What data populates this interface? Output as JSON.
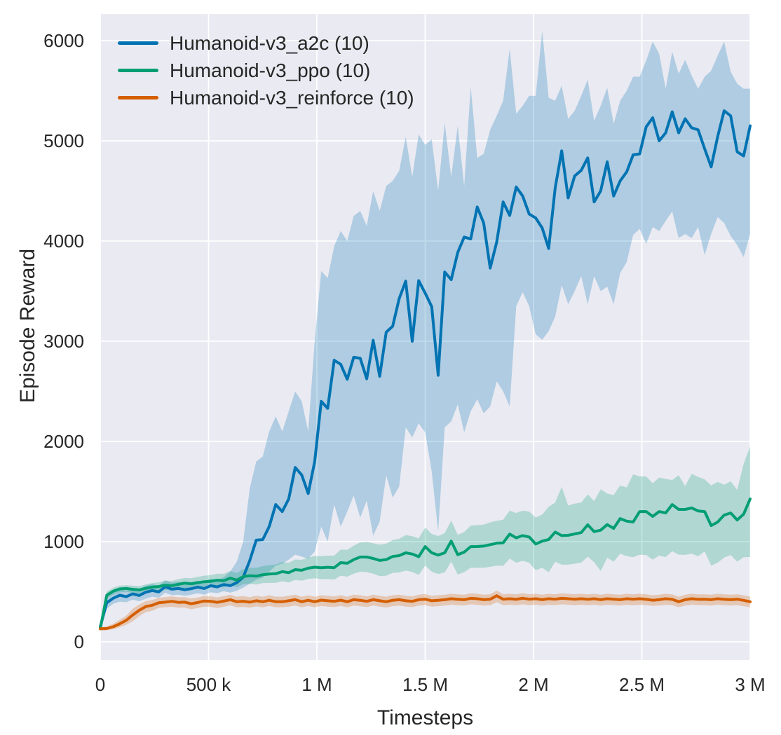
{
  "axes": {
    "xlabel": "Timesteps",
    "ylabel": "Episode Reward",
    "x_ticks": [
      {
        "label": "0",
        "value": 0
      },
      {
        "label": "500 k",
        "value": 500
      },
      {
        "label": "1 M",
        "value": 1000
      },
      {
        "label": "1.5 M",
        "value": 1500
      },
      {
        "label": "2 M",
        "value": 2000
      },
      {
        "label": "2.5 M",
        "value": 2500
      },
      {
        "label": "3 M",
        "value": 3000
      }
    ],
    "y_ticks": [
      {
        "label": "0",
        "value": 0
      },
      {
        "label": "1000",
        "value": 1000
      },
      {
        "label": "2000",
        "value": 2000
      },
      {
        "label": "3000",
        "value": 3000
      },
      {
        "label": "4000",
        "value": 4000
      },
      {
        "label": "5000",
        "value": 5000
      },
      {
        "label": "6000",
        "value": 6000
      }
    ]
  },
  "legend": {
    "entries": [
      {
        "label": "Humanoid-v3_a2c (10)",
        "color": "#0173b2"
      },
      {
        "label": "Humanoid-v3_ppo (10)",
        "color": "#029e73"
      },
      {
        "label": "Humanoid-v3_reinforce (10)",
        "color": "#d55e00"
      }
    ],
    "position": "upper left"
  },
  "colors": {
    "plot_bg": "#eaeaf2",
    "grid": "#ffffff",
    "text": "#262626",
    "blue": "#0173b2",
    "green": "#029e73",
    "orange": "#d55e00"
  },
  "chart_data": {
    "type": "line",
    "title": "",
    "xlabel": "Timesteps",
    "ylabel": "Episode Reward",
    "x_unit": "thousand timesteps",
    "xlim": [
      0,
      3000
    ],
    "ylim_shown_ticks": [
      0,
      6000
    ],
    "grid": true,
    "bands": "min-max shaded region per series, fill same color at 25% opacity",
    "x": [
      0,
      30,
      60,
      90,
      120,
      150,
      180,
      210,
      240,
      270,
      300,
      330,
      360,
      390,
      420,
      450,
      480,
      510,
      540,
      570,
      600,
      630,
      660,
      690,
      720,
      750,
      780,
      810,
      840,
      870,
      900,
      930,
      960,
      990,
      1020,
      1050,
      1080,
      1110,
      1140,
      1170,
      1200,
      1230,
      1260,
      1290,
      1320,
      1350,
      1380,
      1410,
      1440,
      1470,
      1500,
      1530,
      1560,
      1590,
      1620,
      1650,
      1680,
      1710,
      1740,
      1770,
      1800,
      1830,
      1860,
      1890,
      1920,
      1950,
      1980,
      2010,
      2040,
      2070,
      2100,
      2130,
      2160,
      2190,
      2220,
      2250,
      2280,
      2310,
      2340,
      2370,
      2400,
      2430,
      2460,
      2490,
      2520,
      2550,
      2580,
      2610,
      2640,
      2670,
      2700,
      2730,
      2760,
      2790,
      2820,
      2850,
      2880,
      2910,
      2940,
      2970,
      3000
    ],
    "series": [
      {
        "name": "Humanoid-v3_a2c (10)",
        "color": "#0173b2",
        "mean": [
          150,
          390,
          435,
          465,
          450,
          478,
          462,
          495,
          512,
          498,
          550,
          525,
          532,
          520,
          530,
          546,
          532,
          560,
          548,
          572,
          560,
          590,
          645,
          810,
          1015,
          1020,
          1150,
          1370,
          1300,
          1425,
          1740,
          1665,
          1480,
          1800,
          2400,
          2330,
          2810,
          2770,
          2620,
          2840,
          2830,
          2625,
          3010,
          2650,
          3090,
          3150,
          3425,
          3600,
          3000,
          3605,
          3480,
          3345,
          2660,
          3690,
          3615,
          3885,
          4040,
          4020,
          4340,
          4180,
          3730,
          3990,
          4390,
          4255,
          4540,
          4450,
          4270,
          4230,
          4130,
          3925,
          4530,
          4900,
          4430,
          4650,
          4705,
          4830,
          4390,
          4500,
          4790,
          4450,
          4600,
          4690,
          4860,
          4870,
          5140,
          5230,
          5000,
          5080,
          5290,
          5080,
          5220,
          5130,
          5110,
          4920,
          4740,
          5040,
          5300,
          5250,
          4890,
          4850,
          5150
        ],
        "lo": [
          120,
          330,
          380,
          400,
          395,
          420,
          405,
          430,
          450,
          440,
          490,
          465,
          470,
          460,
          470,
          485,
          470,
          495,
          485,
          505,
          490,
          510,
          540,
          580,
          620,
          640,
          700,
          760,
          780,
          820,
          870,
          850,
          830,
          900,
          1150,
          1000,
          1370,
          1150,
          1300,
          1460,
          1240,
          1410,
          1060,
          1200,
          1660,
          1440,
          1550,
          2140,
          2040,
          2180,
          2090,
          1700,
          1100,
          2140,
          2200,
          2370,
          2090,
          2300,
          2420,
          2280,
          2350,
          2600,
          2500,
          2350,
          3350,
          3490,
          3350,
          3070,
          3015,
          3100,
          3245,
          3560,
          3370,
          3500,
          3650,
          3370,
          3650,
          3500,
          3545,
          3370,
          3680,
          3790,
          4060,
          4120,
          3970,
          4140,
          4100,
          4200,
          4295,
          4030,
          4070,
          4030,
          4140,
          3860,
          4070,
          4240,
          4180,
          4050,
          3960,
          3840,
          4070
        ],
        "hi": [
          180,
          450,
          490,
          530,
          510,
          540,
          525,
          560,
          575,
          560,
          615,
          590,
          600,
          585,
          595,
          610,
          600,
          630,
          615,
          645,
          700,
          800,
          1000,
          1530,
          1800,
          1850,
          2100,
          2250,
          2100,
          2300,
          2500,
          2400,
          2100,
          3000,
          3700,
          3630,
          3950,
          4100,
          4000,
          4250,
          4300,
          4150,
          4500,
          4300,
          4550,
          4600,
          4700,
          5040,
          4640,
          5065,
          4960,
          5015,
          4500,
          5180,
          4640,
          5150,
          4550,
          5540,
          4830,
          4870,
          5110,
          5250,
          5400,
          5920,
          5270,
          5350,
          5450,
          5450,
          6100,
          5430,
          5400,
          5550,
          5220,
          5300,
          5450,
          5610,
          5200,
          5350,
          5530,
          5170,
          5400,
          5500,
          5640,
          5640,
          5800,
          5990,
          5870,
          5520,
          5890,
          5670,
          5810,
          5650,
          5520,
          5640,
          5700,
          5850,
          5990,
          5690,
          5570,
          5520,
          5520
        ]
      },
      {
        "name": "Humanoid-v3_ppo (10)",
        "color": "#029e73",
        "mean": [
          130,
          465,
          505,
          528,
          532,
          524,
          518,
          534,
          546,
          552,
          565,
          560,
          574,
          586,
          580,
          590,
          600,
          604,
          615,
          610,
          636,
          616,
          650,
          660,
          655,
          670,
          676,
          680,
          700,
          690,
          720,
          714,
          735,
          745,
          740,
          744,
          740,
          790,
          784,
          820,
          846,
          846,
          832,
          812,
          820,
          852,
          860,
          888,
          876,
          850,
          950,
          888,
          866,
          888,
          1005,
          870,
          895,
          950,
          951,
          955,
          970,
          984,
          988,
          1075,
          1038,
          1060,
          1046,
          976,
          1005,
          1021,
          1095,
          1060,
          1063,
          1076,
          1090,
          1168,
          1100,
          1114,
          1170,
          1132,
          1230,
          1204,
          1196,
          1300,
          1300,
          1252,
          1300,
          1286,
          1370,
          1322,
          1322,
          1336,
          1306,
          1300,
          1160,
          1195,
          1265,
          1286,
          1216,
          1274,
          1426
        ],
        "lo": [
          110,
          430,
          470,
          495,
          498,
          488,
          480,
          495,
          505,
          510,
          520,
          512,
          524,
          534,
          525,
          532,
          540,
          542,
          550,
          542,
          565,
          545,
          575,
          580,
          572,
          585,
          588,
          588,
          605,
          592,
          618,
          610,
          628,
          635,
          625,
          628,
          620,
          660,
          650,
          680,
          700,
          695,
          680,
          655,
          660,
          688,
          692,
          712,
          698,
          668,
          760,
          700,
          676,
          692,
          800,
          672,
          695,
          740,
          738,
          740,
          748,
          760,
          758,
          830,
          790,
          808,
          790,
          715,
          740,
          694,
          800,
          770,
          770,
          780,
          790,
          850,
          795,
          706,
          840,
          800,
          880,
          855,
          845,
          870,
          867,
          820,
          860,
          846,
          905,
          870,
          868,
          880,
          855,
          902,
          760,
          790,
          840,
          867,
          800,
          845,
          846
        ],
        "hi": [
          150,
          500,
          540,
          560,
          566,
          560,
          556,
          573,
          587,
          594,
          610,
          608,
          624,
          638,
          635,
          648,
          660,
          666,
          680,
          678,
          707,
          687,
          725,
          740,
          738,
          755,
          764,
          772,
          795,
          788,
          822,
          818,
          842,
          855,
          855,
          860,
          860,
          920,
          918,
          960,
          992,
          997,
          984,
          969,
          980,
          1016,
          1028,
          1064,
          1054,
          1032,
          1140,
          1076,
          1056,
          1084,
          1210,
          1068,
          1095,
          1160,
          1164,
          1170,
          1192,
          1208,
          1218,
          1310,
          1286,
          1310,
          1300,
          1240,
          1270,
          1348,
          1390,
          1546,
          1360,
          1380,
          1390,
          1470,
          1405,
          1522,
          1480,
          1464,
          1560,
          1540,
          1671,
          1650,
          1650,
          1582,
          1640,
          1626,
          1615,
          1662,
          1553,
          1676,
          1646,
          1622,
          1560,
          1595,
          1567,
          1602,
          1516,
          1774,
          1950
        ]
      },
      {
        "name": "Humanoid-v3_reinforce (10)",
        "color": "#d55e00",
        "mean": [
          130,
          133,
          150,
          180,
          215,
          268,
          315,
          352,
          365,
          390,
          396,
          404,
          394,
          396,
          380,
          392,
          408,
          404,
          394,
          406,
          420,
          400,
          405,
          396,
          410,
          400,
          415,
          400,
          400,
          410,
          420,
          400,
          415,
          400,
          416,
          410,
          404,
          416,
          400,
          420,
          415,
          404,
          420,
          410,
          400,
          415,
          420,
          410,
          404,
          420,
          425,
          410,
          415,
          420,
          430,
          424,
          420,
          434,
          430,
          420,
          425,
          460,
          425,
          430,
          424,
          435,
          425,
          430,
          420,
          430,
          425,
          434,
          430,
          425,
          430,
          424,
          430,
          420,
          430,
          425,
          420,
          430,
          425,
          430,
          424,
          415,
          420,
          430,
          424,
          400,
          420,
          430,
          424,
          425,
          420,
          430,
          424,
          420,
          425,
          414,
          400
        ],
        "lo": [
          115,
          116,
          125,
          145,
          170,
          205,
          255,
          295,
          310,
          340,
          345,
          350,
          340,
          342,
          325,
          338,
          352,
          348,
          338,
          350,
          364,
          344,
          348,
          340,
          354,
          344,
          358,
          344,
          344,
          352,
          362,
          344,
          358,
          344,
          358,
          352,
          346,
          358,
          344,
          362,
          356,
          346,
          362,
          352,
          342,
          356,
          362,
          352,
          346,
          362,
          366,
          352,
          356,
          362,
          370,
          366,
          362,
          374,
          370,
          362,
          366,
          396,
          366,
          370,
          366,
          374,
          366,
          370,
          362,
          370,
          366,
          374,
          370,
          366,
          370,
          366,
          370,
          362,
          370,
          366,
          362,
          370,
          366,
          370,
          366,
          358,
          362,
          370,
          366,
          344,
          362,
          370,
          366,
          366,
          362,
          370,
          366,
          362,
          366,
          356,
          344
        ],
        "hi": [
          145,
          152,
          180,
          220,
          262,
          330,
          372,
          406,
          418,
          440,
          446,
          454,
          444,
          446,
          432,
          442,
          458,
          454,
          444,
          456,
          470,
          450,
          456,
          446,
          460,
          450,
          465,
          450,
          450,
          460,
          470,
          450,
          465,
          450,
          466,
          460,
          454,
          466,
          450,
          470,
          465,
          454,
          470,
          460,
          450,
          465,
          470,
          460,
          454,
          470,
          476,
          460,
          465,
          470,
          480,
          474,
          470,
          484,
          480,
          470,
          475,
          512,
          475,
          480,
          474,
          485,
          475,
          480,
          470,
          480,
          475,
          484,
          480,
          475,
          480,
          474,
          480,
          470,
          480,
          475,
          470,
          480,
          475,
          480,
          474,
          465,
          470,
          480,
          474,
          450,
          470,
          480,
          474,
          475,
          470,
          480,
          474,
          470,
          475,
          464,
          450
        ]
      }
    ]
  }
}
